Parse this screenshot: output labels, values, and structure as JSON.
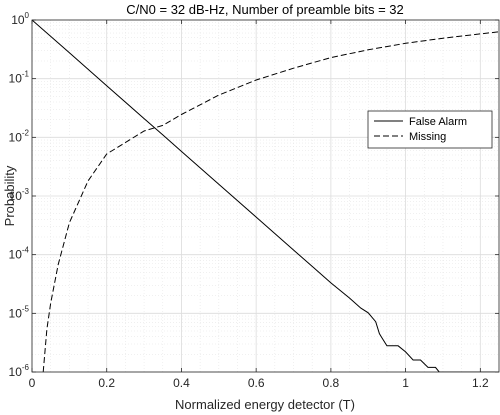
{
  "chart_data": {
    "type": "line",
    "title": "C/N0 = 32 dB-Hz, Number of preamble bits = 32",
    "xlabel": "Normalized energy detector (T)",
    "ylabel": "Probability",
    "xlim": [
      0,
      1.25
    ],
    "ylim": [
      1e-06,
      1
    ],
    "yscale": "log",
    "grid": true,
    "minor_grid": true,
    "legend_position": "top-right",
    "x_ticks": [
      {
        "value": 0,
        "label": "0"
      },
      {
        "value": 0.2,
        "label": "0.2"
      },
      {
        "value": 0.4,
        "label": "0.4"
      },
      {
        "value": 0.6,
        "label": "0.6"
      },
      {
        "value": 0.8,
        "label": "0.8"
      },
      {
        "value": 1.0,
        "label": "1"
      },
      {
        "value": 1.2,
        "label": "1.2"
      }
    ],
    "y_ticks": [
      {
        "value": 1,
        "base": "10",
        "exp": "0"
      },
      {
        "value": 0.1,
        "base": "10",
        "exp": "-1"
      },
      {
        "value": 0.01,
        "base": "10",
        "exp": "-2"
      },
      {
        "value": 0.001,
        "base": "10",
        "exp": "-3"
      },
      {
        "value": 0.0001,
        "base": "10",
        "exp": "-4"
      },
      {
        "value": 1e-05,
        "base": "10",
        "exp": "-5"
      },
      {
        "value": 1e-06,
        "base": "10",
        "exp": "-6"
      }
    ],
    "series": [
      {
        "name": "False Alarm",
        "style": "solid",
        "color": "#000000",
        "x": [
          0,
          0.1,
          0.2,
          0.3,
          0.35,
          0.4,
          0.5,
          0.6,
          0.7,
          0.75,
          0.8,
          0.85,
          0.88,
          0.9,
          0.92,
          0.93,
          0.95,
          0.98,
          1.0,
          1.02,
          1.04,
          1.06,
          1.08,
          1.09,
          1.1,
          1.15,
          1.2,
          1.25
        ],
        "y": [
          1,
          0.276,
          0.0759,
          0.0209,
          0.011,
          0.00575,
          0.00158,
          0.000437,
          0.00012,
          6.3e-05,
          3.3e-05,
          1.82e-05,
          1.23e-05,
          1.02e-05,
          7.2e-06,
          4.5e-06,
          2.8e-06,
          2.8e-06,
          2.2e-06,
          1.6e-06,
          1.6e-06,
          1.2e-06,
          1.2e-06,
          1e-06,
          1e-06,
          1e-06,
          1e-06,
          1e-06
        ]
      },
      {
        "name": "Missing",
        "style": "dashed",
        "color": "#000000",
        "x": [
          0.03,
          0.04,
          0.05,
          0.07,
          0.1,
          0.15,
          0.2,
          0.3,
          0.35,
          0.4,
          0.5,
          0.6,
          0.7,
          0.8,
          0.9,
          1.0,
          1.1,
          1.2,
          1.25
        ],
        "y": [
          1e-06,
          5.4e-06,
          1.5e-05,
          6.8e-05,
          0.00035,
          0.0018,
          0.0052,
          0.0128,
          0.016,
          0.0245,
          0.0525,
          0.095,
          0.151,
          0.229,
          0.31,
          0.4,
          0.49,
          0.58,
          0.63
        ]
      }
    ]
  }
}
